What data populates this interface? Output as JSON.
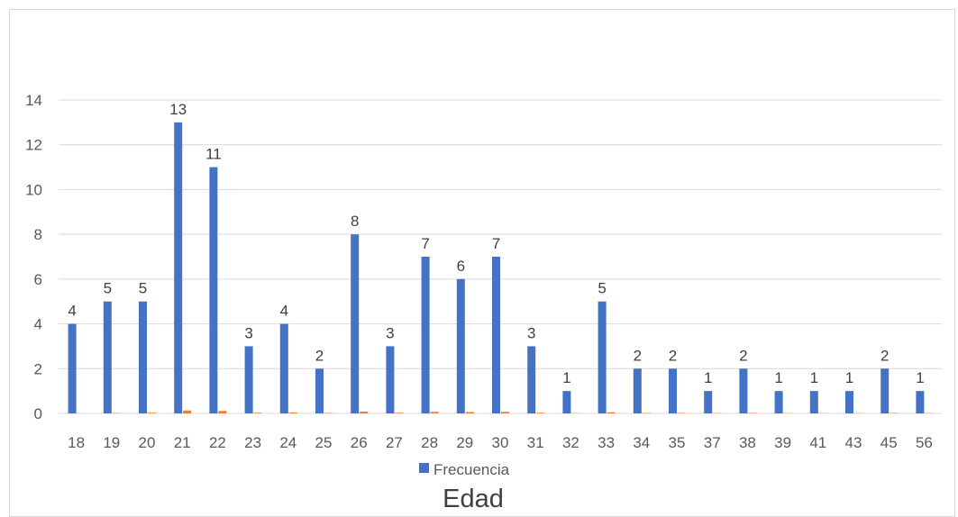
{
  "chart_data": {
    "type": "bar",
    "title": "",
    "xlabel": "Edad",
    "ylabel": "",
    "ylim": [
      0,
      14
    ],
    "yticks": [
      0,
      2,
      4,
      6,
      8,
      10,
      12,
      14
    ],
    "grid": true,
    "legend_position": "bottom",
    "categories": [
      "18",
      "19",
      "20",
      "21",
      "22",
      "23",
      "24",
      "25",
      "26",
      "27",
      "28",
      "29",
      "30",
      "31",
      "32",
      "33",
      "34",
      "35",
      "37",
      "38",
      "39",
      "41",
      "43",
      "45",
      "56"
    ],
    "series": [
      {
        "name": "Frecuencia",
        "color": "#4472c4",
        "values": [
          4,
          5,
          5,
          13,
          11,
          3,
          4,
          2,
          8,
          3,
          7,
          6,
          7,
          3,
          1,
          5,
          2,
          2,
          1,
          2,
          1,
          1,
          1,
          2,
          1
        ],
        "show_labels": true,
        "in_legend": true
      },
      {
        "name": "",
        "color": "#ed7d31",
        "values": [
          0,
          0.02,
          0.03,
          0.13,
          0.11,
          0.03,
          0.04,
          0.02,
          0.08,
          0.03,
          0.07,
          0.06,
          0.07,
          0.03,
          0.01,
          0.05,
          0.02,
          0.02,
          0.01,
          0.02,
          0.01,
          0.01,
          0.01,
          0.02,
          0.01
        ],
        "show_labels": false,
        "in_legend": false
      }
    ]
  }
}
